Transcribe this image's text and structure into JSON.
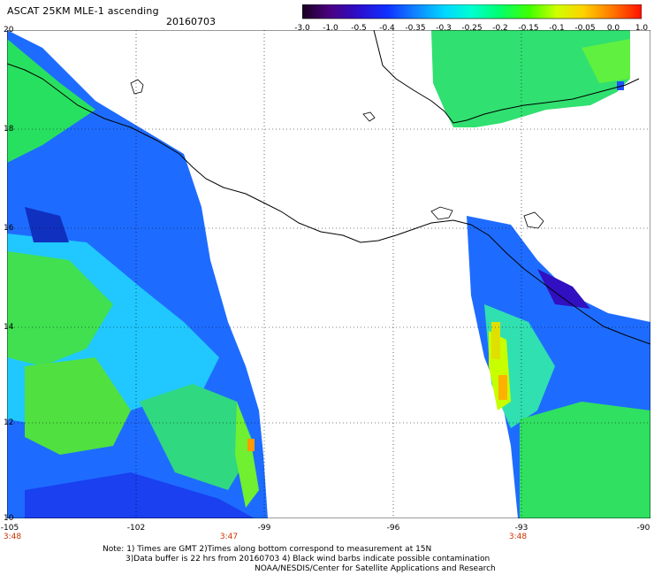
{
  "header": {
    "title": "ASCAT 25KM MLE-1 ascending",
    "date": "20160703"
  },
  "colorbar": {
    "tick_labels": [
      "-3.0",
      "-1.0",
      "-0.5",
      "-0.4",
      "-0.35",
      "-0.3",
      "-0.25",
      "-0.2",
      "-0.15",
      "-0.1",
      "-0.05",
      "0.0",
      "1.0"
    ],
    "colors": [
      "#2a0030",
      "#5a0090",
      "#2a14d0",
      "#1440ff",
      "#1e78ff",
      "#00e0ff",
      "#00ffc0",
      "#00ff40",
      "#80ff00",
      "#e0ff00",
      "#ffb000",
      "#ff5000",
      "#ff0000"
    ]
  },
  "axes": {
    "lat_labels": [
      "20",
      "18",
      "16",
      "14",
      "12",
      "10"
    ],
    "lon_labels": [
      "-105",
      "-102",
      "-99",
      "-96",
      "-93",
      "-90"
    ],
    "time_labels": [
      "3:48",
      "3:47",
      "3:48"
    ]
  },
  "notes": {
    "line1": "Note: 1) Times are GMT 2)Times along bottom correspond to measurement at 15N",
    "line2": "3)Data buffer is 22 hrs from 20160703 4) Black wind barbs indicate possible contamination",
    "line3": "NOAA/NESDIS/Center for Satellite Applications and Research"
  },
  "colors": {
    "grid": "#000000",
    "coast": "#000000",
    "time_label": "#cc3300"
  }
}
